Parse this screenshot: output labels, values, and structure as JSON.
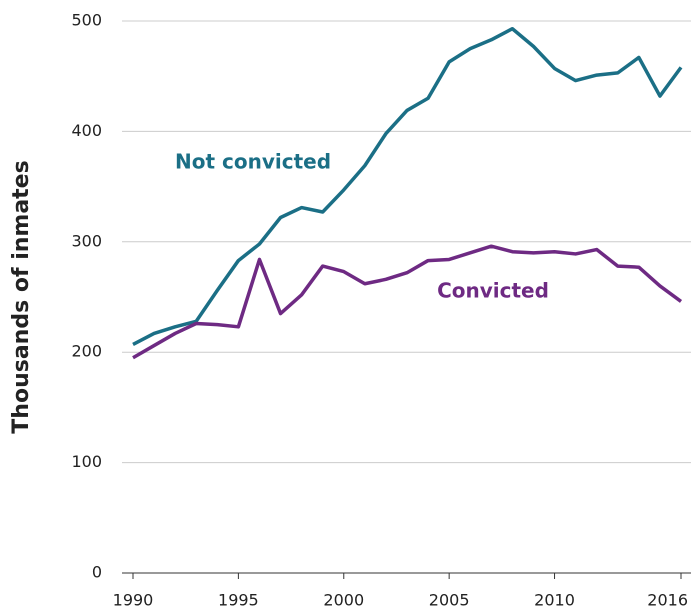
{
  "chart_data": {
    "type": "line",
    "y_label": "Thousands of inmates",
    "x": [
      1990,
      1991,
      1992,
      1993,
      1994,
      1995,
      1996,
      1997,
      1998,
      1999,
      2000,
      2001,
      2002,
      2003,
      2004,
      2005,
      2006,
      2007,
      2008,
      2009,
      2010,
      2011,
      2012,
      2013,
      2014,
      2015,
      2016
    ],
    "series": [
      {
        "name": "Not convicted",
        "color": "#1b6f86",
        "values": [
          207,
          217,
          223,
          228,
          256,
          283,
          298,
          322,
          331,
          327,
          347,
          369,
          398,
          419,
          430,
          463,
          475,
          483,
          493,
          477,
          457,
          446,
          451,
          453,
          467,
          432,
          458
        ]
      },
      {
        "name": "Convicted",
        "color": "#6e2a83",
        "values": [
          195,
          206,
          217,
          226,
          225,
          223,
          284,
          235,
          252,
          278,
          273,
          262,
          266,
          272,
          283,
          284,
          290,
          296,
          291,
          290,
          291,
          289,
          293,
          278,
          277,
          260,
          246
        ]
      }
    ],
    "xlim": [
      1990,
      2016
    ],
    "xticks": [
      1990,
      1995,
      2000,
      2005,
      2010,
      2016
    ],
    "ylim": [
      0,
      500
    ],
    "yticks": [
      0,
      100,
      200,
      300,
      400,
      500
    ],
    "grid": true
  }
}
